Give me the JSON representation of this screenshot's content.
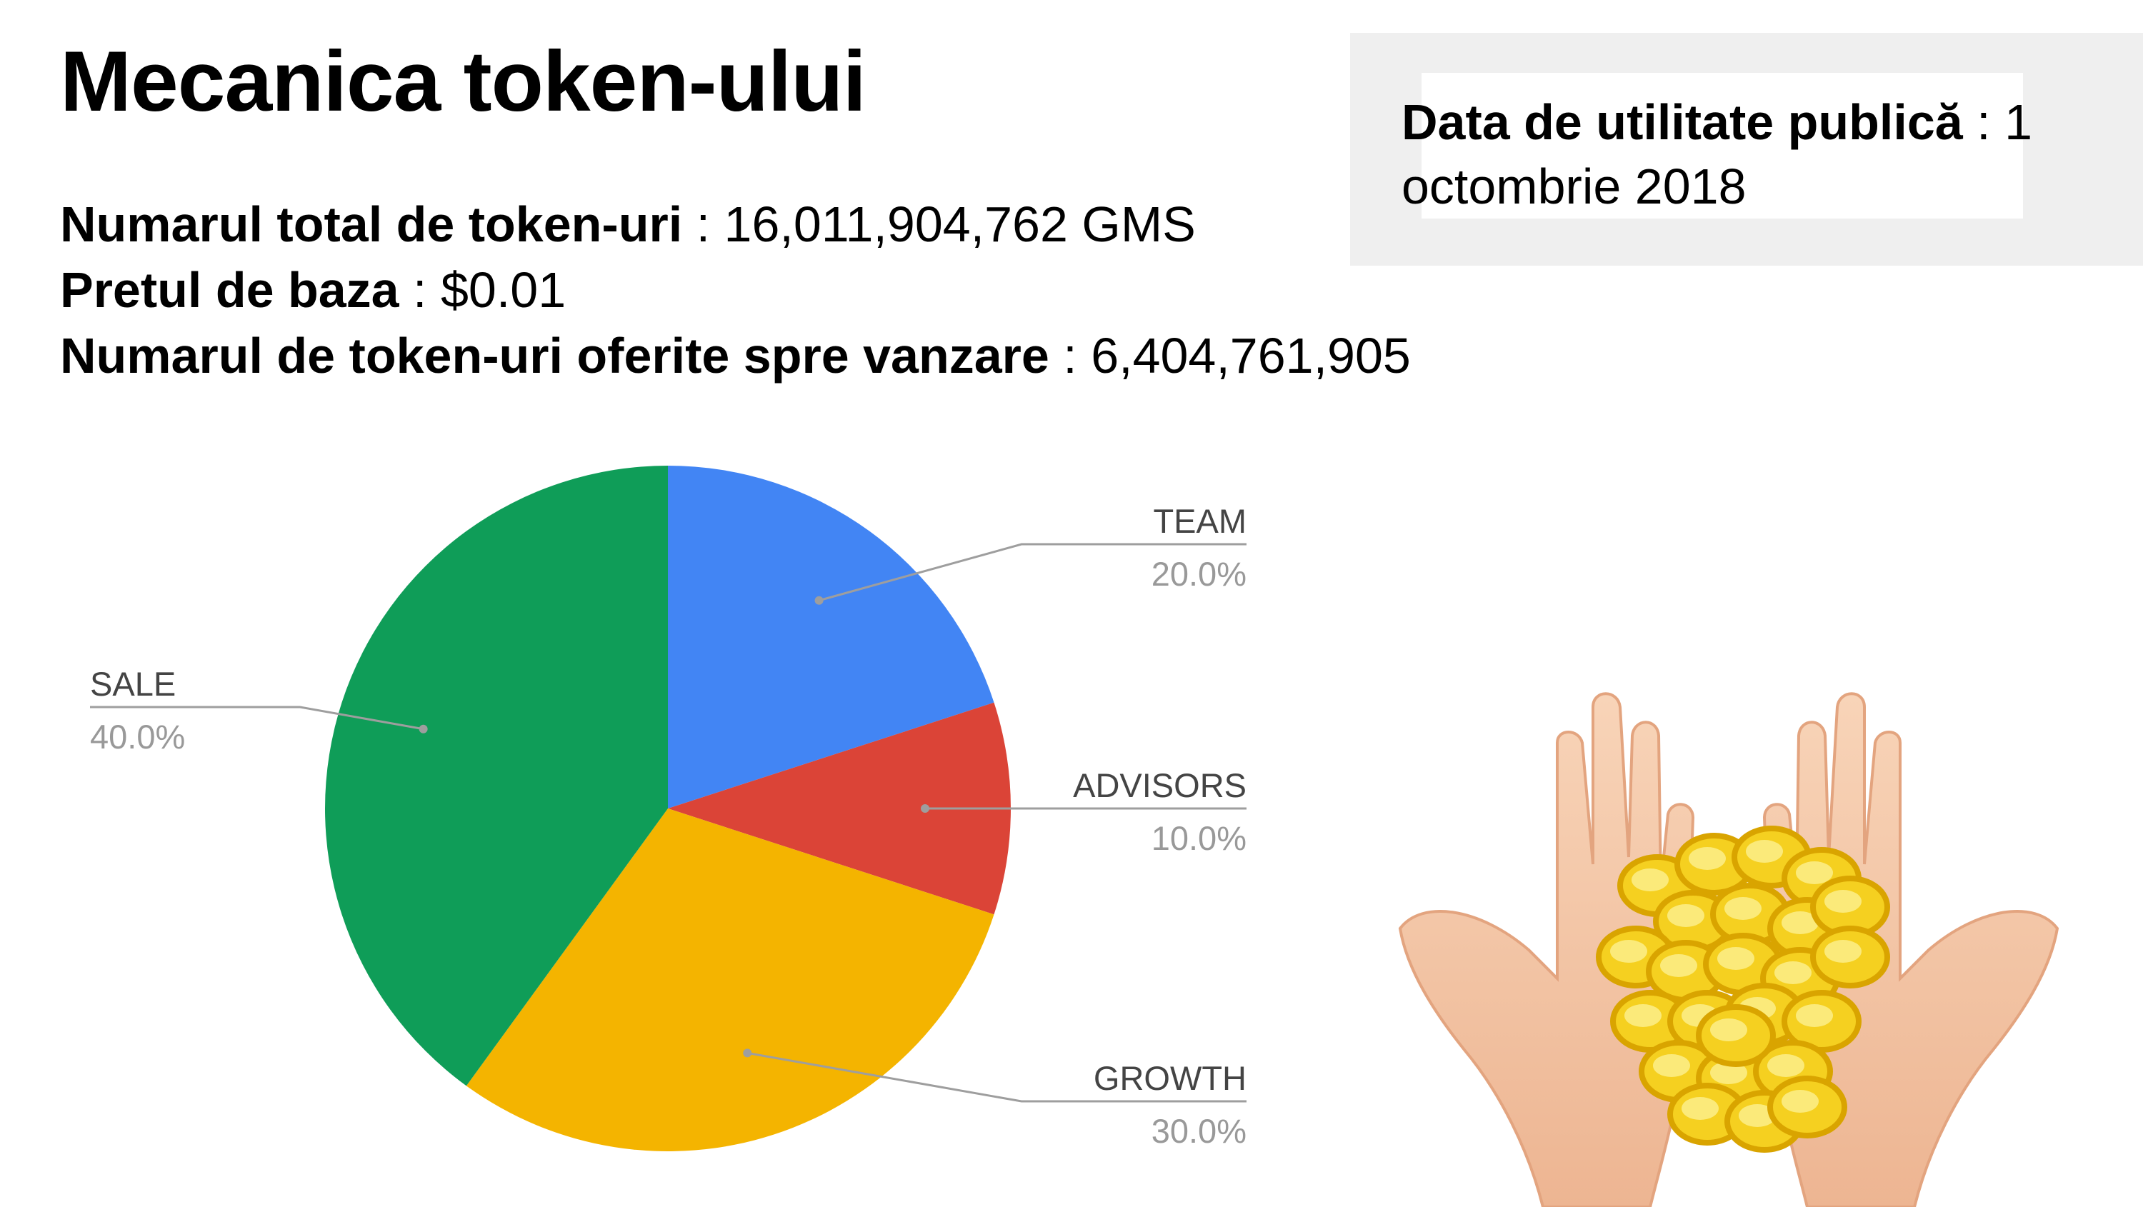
{
  "title": "Mecanica token-ului",
  "stats": {
    "total_label": "Numarul total de token-uri",
    "total_sep": " : ",
    "total_value": "16,011,904,762 GMS",
    "price_label": "Pretul de baza",
    "price_sep": " : ",
    "price_value": "$0.01",
    "offered_label": "Numarul de token-uri oferite spre vanzare",
    "offered_sep": " : ",
    "offered_value": "6,404,761,905"
  },
  "public_date": {
    "label": "Data de utilitate publică",
    "sep": " : ",
    "value": "1 octombrie 2018"
  },
  "chart_data": {
    "type": "pie",
    "title": "",
    "slices": [
      {
        "label": "TEAM",
        "value": 20.0,
        "pct_label": "20.0%",
        "color": "#4285F4"
      },
      {
        "label": "ADVISORS",
        "value": 10.0,
        "pct_label": "10.0%",
        "color": "#DB4437"
      },
      {
        "label": "GROWTH",
        "value": 30.0,
        "pct_label": "30.0%",
        "color": "#F4B400"
      },
      {
        "label": "SALE",
        "value": 40.0,
        "pct_label": "40.0%",
        "color": "#0F9D58"
      }
    ],
    "start_angle": "top (12 o'clock)",
    "direction": "clockwise",
    "legend": "none (labels with leader lines)"
  },
  "illustration": {
    "icon": "hands-holding-gold-coins-icon",
    "coin_color": "#F5D020",
    "skin_color": "#F6C9A8"
  }
}
